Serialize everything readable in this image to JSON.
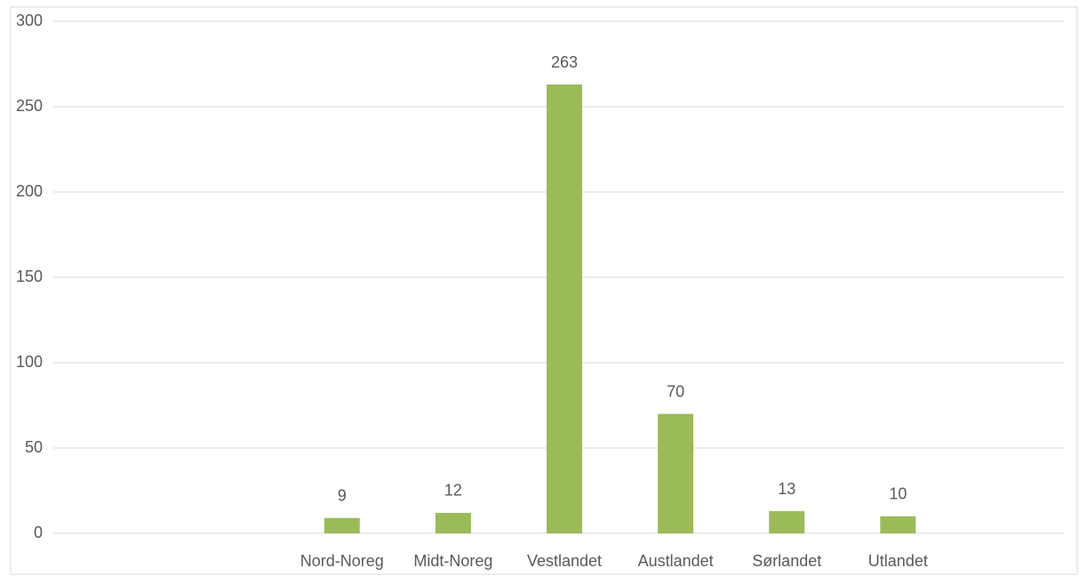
{
  "chart_data": {
    "type": "bar",
    "categories": [
      null,
      null,
      "Nord-Noreg",
      "Midt-Noreg",
      "Vestlandet",
      "Austlandet",
      "Sørlandet",
      "Utlandet",
      null
    ],
    "values": [
      null,
      null,
      9,
      12,
      263,
      70,
      13,
      10,
      null
    ],
    "color": "#9bbb59",
    "ylim": [
      0,
      300
    ],
    "yticks": [
      0,
      50,
      100,
      150,
      200,
      250,
      300
    ],
    "grid": true
  }
}
